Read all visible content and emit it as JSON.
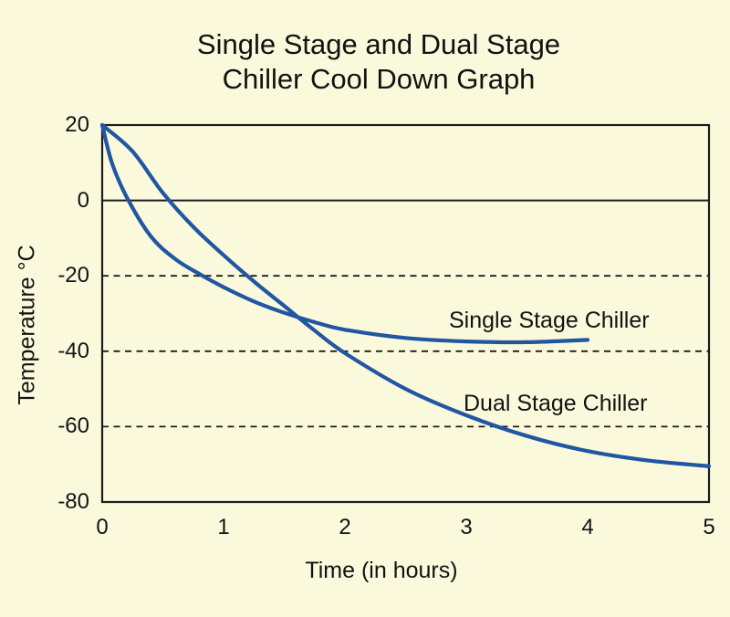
{
  "title": {
    "line1": "Single Stage and Dual Stage",
    "line2": "Chiller Cool Down Graph"
  },
  "colors": {
    "background": "#FBF9DC",
    "curve": "#2056A2",
    "axis": "#1C1C1C",
    "text": "#121212"
  },
  "chart_data": {
    "type": "line",
    "title": "Single Stage and Dual Stage Chiller Cool Down Graph",
    "xlabel": "Time (in hours)",
    "ylabel": "Temperature °C",
    "xlim": [
      0,
      5
    ],
    "ylim": [
      -80,
      20
    ],
    "xticks": [
      0,
      1,
      2,
      3,
      4,
      5
    ],
    "yticks": [
      20,
      0,
      -20,
      -40,
      -60,
      -80
    ],
    "grid": {
      "solid_at": [
        0
      ],
      "dashed_at": [
        -20,
        -40,
        -60
      ]
    },
    "legend_position": "inline-labels",
    "series": [
      {
        "name": "Single Stage Chiller",
        "color": "#2056A2",
        "x": [
          0,
          0.08,
          0.2,
          0.4,
          0.6,
          0.8,
          1.0,
          1.25,
          1.5,
          1.75,
          2.0,
          2.5,
          3.0,
          3.5,
          4.0
        ],
        "y": [
          20,
          10,
          1,
          -9.5,
          -15.5,
          -19.5,
          -23,
          -26.8,
          -29.8,
          -32.3,
          -34.3,
          -36.5,
          -37.4,
          -37.6,
          -37
        ]
      },
      {
        "name": "Dual Stage Chiller",
        "color": "#2056A2",
        "x": [
          0,
          0.25,
          0.5,
          0.75,
          1.0,
          1.25,
          1.5,
          1.75,
          2.0,
          2.5,
          3.0,
          3.5,
          4.0,
          4.5,
          5.0
        ],
        "y": [
          20,
          13,
          2,
          -7,
          -14.5,
          -21.5,
          -28,
          -34.5,
          -40.5,
          -50,
          -57,
          -62.5,
          -66.5,
          -69,
          -70.5
        ]
      }
    ]
  }
}
